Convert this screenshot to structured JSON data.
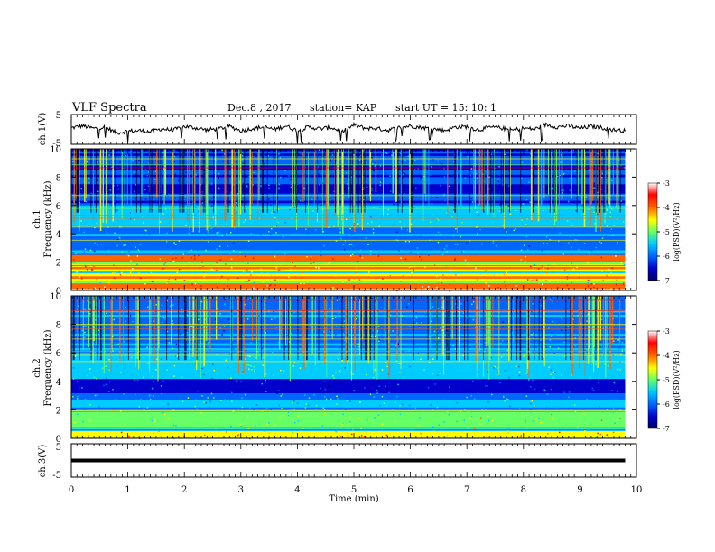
{
  "header": {
    "title": "VLF Spectra",
    "date": "Dec.8  , 2017",
    "station": "station= KAP",
    "start": "start  UT =   15: 10: 1"
  },
  "chart_data": [
    {
      "id": "ch1-waveform",
      "type": "line",
      "ylabel": "ch.1(V)",
      "ylim": [
        -5,
        5
      ],
      "yticks": [
        "5",
        "-5"
      ],
      "xlim": [
        0,
        10
      ],
      "series": [
        {
          "x": [
            0,
            0.2,
            0.4,
            0.6,
            0.8,
            1.0,
            1.2,
            1.4,
            1.6,
            1.8,
            2.0,
            2.2,
            2.4,
            2.6,
            2.8,
            3.0,
            3.2,
            3.4,
            3.6,
            3.8,
            4.0,
            4.2,
            4.4,
            4.6,
            4.8,
            5.0,
            5.2,
            5.4,
            5.6,
            5.8,
            6.0,
            6.2,
            6.4,
            6.6,
            6.8,
            7.0,
            7.2,
            7.4,
            7.6,
            7.8,
            8.0,
            8.2,
            8.4,
            8.6,
            8.8,
            9.0,
            9.2,
            9.4,
            9.6,
            9.8
          ],
          "y": [
            0.5,
            1.2,
            0.3,
            0.8,
            -1.2,
            -0.6,
            -0.4,
            -0.8,
            0.2,
            -0.3,
            1.0,
            0.5,
            -0.2,
            0.2,
            1.0,
            -0.5,
            0.3,
            0.8,
            0.0,
            1.2,
            -0.5,
            0.8,
            0.2,
            0.6,
            -0.8,
            1.5,
            0.4,
            0.3,
            -0.3,
            0.6,
            1.2,
            0.6,
            0.2,
            -0.4,
            0.8,
            0.9,
            -0.2,
            0.7,
            0.5,
            -0.3,
            0.4,
            0.1,
            1.6,
            0.8,
            1.2,
            0.3,
            1.0,
            0.5,
            -0.2,
            -0.5
          ]
        }
      ]
    },
    {
      "id": "ch1-spectrogram",
      "type": "heatmap",
      "ylabel": "ch.1\nFrequency (kHz)",
      "ylim": [
        0,
        10
      ],
      "yticks": [
        "0",
        "2",
        "4",
        "6",
        "8",
        "10"
      ],
      "xlim": [
        0,
        10
      ],
      "colorbar": {
        "label": "log(PSD)(V²/Hz)",
        "range": [
          -7,
          -3
        ],
        "ticks": [
          "-3",
          "-4",
          "-5",
          "-6",
          "-7"
        ]
      }
    },
    {
      "id": "ch2-spectrogram",
      "type": "heatmap",
      "ylabel": "ch.2\nFrequency (kHz)",
      "ylim": [
        0,
        10
      ],
      "yticks": [
        "0",
        "2",
        "4",
        "6",
        "8",
        "10"
      ],
      "xlim": [
        0,
        10
      ],
      "colorbar": {
        "label": "log(PSD)(V²/Hz)",
        "range": [
          -7,
          -3
        ],
        "ticks": [
          "-3",
          "-4",
          "-5",
          "-6",
          "-7"
        ]
      }
    },
    {
      "id": "ch3-waveform",
      "type": "line",
      "ylabel": "ch.3(V)",
      "ylim": [
        -5,
        5
      ],
      "yticks": [
        "5",
        "-5"
      ],
      "xlim": [
        0,
        10
      ],
      "xlabel": "Time  (min)",
      "xticks": [
        "0",
        "1",
        "2",
        "3",
        "4",
        "5",
        "6",
        "7",
        "8",
        "9",
        "10"
      ],
      "series": [
        {
          "x": [
            0,
            9.8
          ],
          "y": [
            0,
            0
          ]
        }
      ]
    }
  ],
  "colors": {
    "scale": [
      "#000066",
      "#0000cc",
      "#0066ff",
      "#00ccff",
      "#66ff66",
      "#ffff00",
      "#ff6600",
      "#ff0000",
      "#ffffff"
    ],
    "axis": "#000000"
  }
}
